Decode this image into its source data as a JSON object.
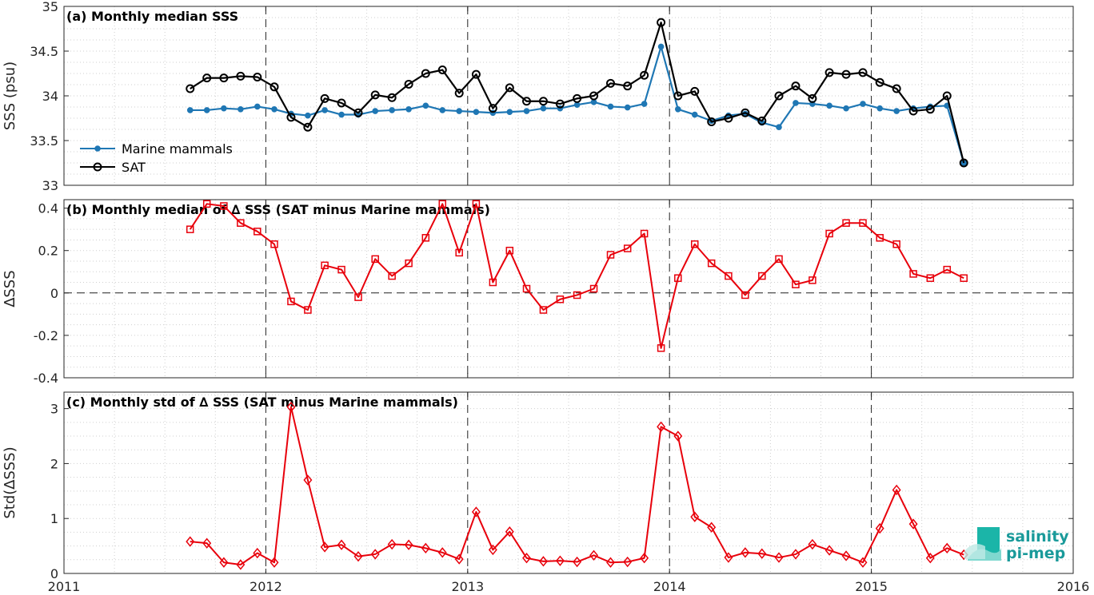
{
  "colors": {
    "marine": "#1f77b4",
    "sat": "#000000",
    "delta": "#e8000b",
    "grid": "#cfcfcf"
  },
  "logo": {
    "line1": "salinity",
    "line2": "pi-mep"
  },
  "chart_data": [
    {
      "type": "line",
      "title": "(a) Monthly median SSS",
      "ylabel": "SSS (psu)",
      "xlim": [
        2011,
        2016
      ],
      "ylim": [
        33,
        35
      ],
      "yticks": [
        "33",
        "33.5",
        "34",
        "34.5",
        "35"
      ],
      "ytick_values": [
        33,
        33.5,
        34,
        34.5,
        35
      ],
      "grid": true,
      "legend": "lower-left",
      "x": [
        2011.625,
        2011.708,
        2011.792,
        2011.875,
        2011.958,
        2012.042,
        2012.125,
        2012.208,
        2012.292,
        2012.375,
        2012.458,
        2012.542,
        2012.625,
        2012.708,
        2012.792,
        2012.875,
        2012.958,
        2013.042,
        2013.125,
        2013.208,
        2013.292,
        2013.375,
        2013.458,
        2013.542,
        2013.625,
        2013.708,
        2013.792,
        2013.875,
        2013.958,
        2014.042,
        2014.125,
        2014.208,
        2014.292,
        2014.375,
        2014.458,
        2014.542,
        2014.625,
        2014.708,
        2014.792,
        2014.875,
        2014.958,
        2015.042,
        2015.125,
        2015.208,
        2015.292,
        2015.375,
        2015.458
      ],
      "series": [
        {
          "name": "Marine mammals",
          "marker": "dot",
          "values": [
            33.84,
            33.84,
            33.86,
            33.85,
            33.88,
            33.85,
            33.8,
            33.78,
            33.84,
            33.79,
            33.79,
            33.83,
            33.84,
            33.85,
            33.89,
            33.84,
            33.83,
            33.82,
            33.81,
            33.82,
            33.83,
            33.86,
            33.86,
            33.9,
            33.93,
            33.88,
            33.87,
            33.91,
            34.55,
            33.85,
            33.79,
            33.72,
            33.78,
            33.8,
            33.7,
            33.65,
            33.92,
            33.91,
            33.89,
            33.86,
            33.91,
            33.86,
            33.83,
            33.86,
            33.88,
            33.89,
            33.25
          ]
        },
        {
          "name": "SAT",
          "marker": "circle",
          "values": [
            34.08,
            34.2,
            34.2,
            34.22,
            34.21,
            34.1,
            33.76,
            33.65,
            33.97,
            33.92,
            33.81,
            34.01,
            33.98,
            34.13,
            34.25,
            34.29,
            34.03,
            34.24,
            33.86,
            34.09,
            33.94,
            33.94,
            33.91,
            33.97,
            34.0,
            34.14,
            34.11,
            34.23,
            34.82,
            34.0,
            34.05,
            33.71,
            33.75,
            33.81,
            33.72,
            34.0,
            34.11,
            33.97,
            34.26,
            34.24,
            34.26,
            34.15,
            34.08,
            33.83,
            33.85,
            34.0,
            33.25
          ]
        }
      ]
    },
    {
      "type": "line",
      "title": "(b) Monthly median of ∆ SSS (SAT minus Marine mammals)",
      "ylabel": "∆SSS",
      "xlim": [
        2011,
        2016
      ],
      "ylim": [
        -0.4,
        0.44
      ],
      "yticks": [
        "-0.4",
        "-0.2",
        "0",
        "0.2",
        "0.4"
      ],
      "ytick_values": [
        -0.4,
        -0.2,
        0,
        0.2,
        0.4
      ],
      "grid": true,
      "reference_line": 0,
      "x": [
        2011.625,
        2011.708,
        2011.792,
        2011.875,
        2011.958,
        2012.042,
        2012.125,
        2012.208,
        2012.292,
        2012.375,
        2012.458,
        2012.542,
        2012.625,
        2012.708,
        2012.792,
        2012.875,
        2012.958,
        2013.042,
        2013.125,
        2013.208,
        2013.292,
        2013.375,
        2013.458,
        2013.542,
        2013.625,
        2013.708,
        2013.792,
        2013.875,
        2013.958,
        2014.042,
        2014.125,
        2014.208,
        2014.292,
        2014.375,
        2014.458,
        2014.542,
        2014.625,
        2014.708,
        2014.792,
        2014.875,
        2014.958,
        2015.042,
        2015.125,
        2015.208,
        2015.292,
        2015.375,
        2015.458
      ],
      "series": [
        {
          "marker": "square",
          "values": [
            0.3,
            0.42,
            0.41,
            0.33,
            0.29,
            0.23,
            -0.04,
            -0.08,
            0.13,
            0.11,
            -0.02,
            0.16,
            0.08,
            0.14,
            0.26,
            0.42,
            0.19,
            0.42,
            0.05,
            0.2,
            0.02,
            -0.08,
            -0.03,
            -0.01,
            0.02,
            0.18,
            0.21,
            0.28,
            -0.26,
            0.07,
            0.23,
            0.14,
            0.08,
            -0.01,
            0.08,
            0.16,
            0.04,
            0.06,
            0.28,
            0.33,
            0.33,
            0.26,
            0.23,
            0.09,
            0.07,
            0.11,
            0.07
          ]
        }
      ]
    },
    {
      "type": "line",
      "title": "(c) Monthly std of ∆ SSS (SAT minus Marine mammals)",
      "ylabel": "Std(∆SSS)",
      "xlim": [
        2011,
        2016
      ],
      "ylim": [
        0,
        3.3
      ],
      "yticks": [
        "0",
        "1",
        "2",
        "3"
      ],
      "ytick_values": [
        0,
        1,
        2,
        3
      ],
      "xticks": [
        "2011",
        "2012",
        "2013",
        "2014",
        "2015",
        "2016"
      ],
      "xtick_values": [
        2011,
        2012,
        2013,
        2014,
        2015,
        2016
      ],
      "grid": true,
      "x": [
        2011.625,
        2011.708,
        2011.792,
        2011.875,
        2011.958,
        2012.042,
        2012.125,
        2012.208,
        2012.292,
        2012.375,
        2012.458,
        2012.542,
        2012.625,
        2012.708,
        2012.792,
        2012.875,
        2012.958,
        2013.042,
        2013.125,
        2013.208,
        2013.292,
        2013.375,
        2013.458,
        2013.542,
        2013.625,
        2013.708,
        2013.792,
        2013.875,
        2013.958,
        2014.042,
        2014.125,
        2014.208,
        2014.292,
        2014.375,
        2014.458,
        2014.542,
        2014.625,
        2014.708,
        2014.792,
        2014.875,
        2014.958,
        2015.042,
        2015.125,
        2015.208,
        2015.292,
        2015.375,
        2015.458
      ],
      "series": [
        {
          "marker": "diamond",
          "values": [
            0.58,
            0.55,
            0.2,
            0.16,
            0.37,
            0.2,
            3.03,
            1.7,
            0.48,
            0.52,
            0.31,
            0.35,
            0.53,
            0.52,
            0.46,
            0.38,
            0.26,
            1.12,
            0.43,
            0.76,
            0.28,
            0.22,
            0.23,
            0.21,
            0.33,
            0.2,
            0.21,
            0.28,
            2.67,
            2.5,
            1.03,
            0.84,
            0.29,
            0.38,
            0.36,
            0.29,
            0.35,
            0.53,
            0.42,
            0.32,
            0.2,
            0.82,
            1.52,
            0.9,
            0.28,
            0.46,
            0.34
          ]
        }
      ]
    }
  ]
}
